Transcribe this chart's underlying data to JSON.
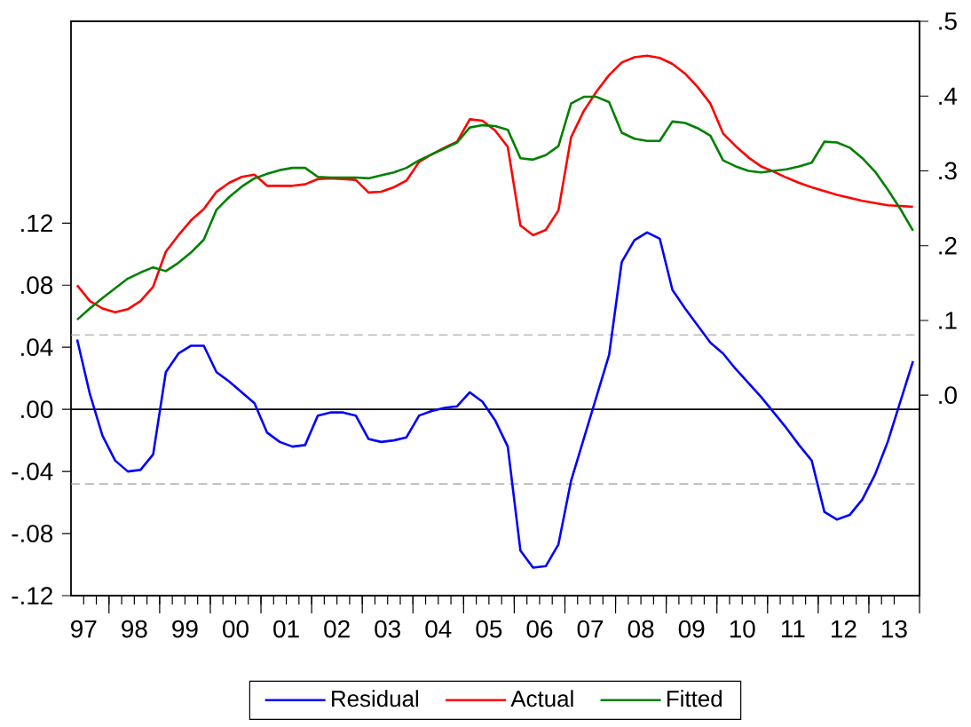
{
  "chart_data": {
    "type": "line",
    "legend": "bottom",
    "x": [
      "1997-05-15",
      "1997-08-15",
      "1997-11-15",
      "1998-02-15",
      "1998-05-15",
      "1998-08-15",
      "1998-11-15",
      "1999-02-15",
      "1999-05-15",
      "1999-08-15",
      "1999-11-15",
      "2000-02-15",
      "2000-05-15",
      "2000-08-15",
      "2000-11-15",
      "2001-02-15",
      "2001-05-15",
      "2001-08-15",
      "2001-11-15",
      "2002-02-15",
      "2002-05-15",
      "2002-08-15",
      "2002-11-15",
      "2003-02-15",
      "2003-05-15",
      "2003-08-15",
      "2003-11-15",
      "2004-02-15",
      "2004-05-15",
      "2004-08-15",
      "2004-11-15",
      "2005-02-15",
      "2005-05-15",
      "2005-08-15",
      "2005-11-15",
      "2006-02-15",
      "2006-05-15",
      "2006-08-15",
      "2006-11-15",
      "2007-02-15",
      "2007-05-15",
      "2007-08-15",
      "2007-11-15",
      "2008-02-15",
      "2008-05-15",
      "2008-08-15",
      "2008-11-15",
      "2009-02-15",
      "2009-05-15",
      "2009-08-15",
      "2009-11-15",
      "2010-02-15",
      "2010-05-15",
      "2010-08-15",
      "2010-11-15",
      "2011-02-15",
      "2011-05-15",
      "2011-08-15",
      "2011-11-15",
      "2012-02-15",
      "2012-05-15",
      "2012-08-15",
      "2012-11-15",
      "2013-02-15",
      "2013-05-15",
      "2013-08-15",
      "2013-11-15"
    ],
    "xlim": [
      "1997-04-01",
      "2014-01-01"
    ],
    "xticks": [
      {
        "value": "1997-07-01",
        "label": "97"
      },
      {
        "value": "1998-07-01",
        "label": "98"
      },
      {
        "value": "1999-07-01",
        "label": "99"
      },
      {
        "value": "2000-07-01",
        "label": "00"
      },
      {
        "value": "2001-07-01",
        "label": "01"
      },
      {
        "value": "2002-07-01",
        "label": "02"
      },
      {
        "value": "2003-07-01",
        "label": "03"
      },
      {
        "value": "2004-07-01",
        "label": "04"
      },
      {
        "value": "2005-07-01",
        "label": "05"
      },
      {
        "value": "2006-07-01",
        "label": "06"
      },
      {
        "value": "2007-07-01",
        "label": "07"
      },
      {
        "value": "2008-07-01",
        "label": "08"
      },
      {
        "value": "2009-07-01",
        "label": "09"
      },
      {
        "value": "2010-07-01",
        "label": "10"
      },
      {
        "value": "2011-07-01",
        "label": "11"
      },
      {
        "value": "2012-07-01",
        "label": "12"
      },
      {
        "value": "2013-07-01",
        "label": "13"
      },
      {
        "value": "1998-01-01",
        "label": null
      },
      {
        "value": "1999-01-01",
        "label": null
      },
      {
        "value": "2000-01-01",
        "label": null
      },
      {
        "value": "2001-01-01",
        "label": null
      },
      {
        "value": "2002-01-01",
        "label": null
      },
      {
        "value": "2003-01-01",
        "label": null
      },
      {
        "value": "2004-01-01",
        "label": null
      },
      {
        "value": "2005-01-01",
        "label": null
      },
      {
        "value": "2006-01-01",
        "label": null
      },
      {
        "value": "2007-01-01",
        "label": null
      },
      {
        "value": "2008-01-01",
        "label": null
      },
      {
        "value": "2009-01-01",
        "label": null
      },
      {
        "value": "2010-01-01",
        "label": null
      },
      {
        "value": "2011-01-01",
        "label": null
      },
      {
        "value": "2012-01-01",
        "label": null
      },
      {
        "value": "2013-01-01",
        "label": null
      },
      {
        "value": "2014-01-01",
        "label": null
      }
    ],
    "ylim": [
      -0.12,
      0.25
    ],
    "yticks": [
      {
        "value": -0.12,
        "label": "-.12"
      },
      {
        "value": -0.08,
        "label": "-.08"
      },
      {
        "value": -0.04,
        "label": "-.04"
      },
      {
        "value": 0,
        "label": ".00"
      },
      {
        "value": 0.04,
        "label": ".04"
      },
      {
        "value": 0.08,
        "label": ".08"
      },
      {
        "value": 0.12,
        "label": ".12"
      }
    ],
    "y2lim": [
      -0.268,
      0.5
    ],
    "y2ticks": [
      {
        "value": 0,
        "label": ".0"
      },
      {
        "value": 0.1,
        "label": ".1"
      },
      {
        "value": 0.2,
        "label": ".2"
      },
      {
        "value": 0.3,
        "label": ".3"
      },
      {
        "value": 0.4,
        "label": ".4"
      },
      {
        "value": 0.5,
        "label": ".5"
      }
    ],
    "ref_lines": [
      {
        "axis": "y",
        "value": 0,
        "color": "#000000",
        "line_style": "solid"
      },
      {
        "axis": "y",
        "value": 0.048,
        "color": "#999999",
        "line_style": "dashed"
      },
      {
        "axis": "y",
        "value": -0.048,
        "color": "#999999",
        "line_style": "dashed"
      }
    ],
    "series": [
      {
        "name": "Residual",
        "color": "#0000ff",
        "axis": "y",
        "values": [
          0.045,
          0.01,
          -0.017,
          -0.033,
          -0.04,
          -0.039,
          -0.029,
          0.024,
          0.036,
          0.041,
          0.041,
          0.024,
          0.018,
          0.011,
          0.004,
          -0.015,
          -0.021,
          -0.024,
          -0.023,
          -0.004,
          -0.002,
          -0.002,
          -0.004,
          -0.019,
          -0.021,
          -0.02,
          -0.018,
          -0.004,
          -0.001,
          0.001,
          0.002,
          0.011,
          0.005,
          -0.007,
          -0.024,
          -0.091,
          -0.102,
          -0.101,
          -0.087,
          -0.046,
          -0.019,
          0.008,
          0.035,
          0.095,
          0.109,
          0.114,
          0.11,
          0.077,
          0.065,
          0.054,
          0.043,
          0.036,
          0.026,
          0.017,
          0.008,
          -0.002,
          -0.012,
          -0.023,
          -0.033,
          -0.066,
          -0.071,
          -0.068,
          -0.058,
          -0.042,
          -0.021,
          0.005,
          0.031
        ]
      },
      {
        "name": "Actual",
        "color": "#ff0000",
        "axis": "y2",
        "values": [
          0.147,
          0.126,
          0.116,
          0.111,
          0.115,
          0.126,
          0.145,
          0.192,
          0.214,
          0.234,
          0.249,
          0.272,
          0.284,
          0.292,
          0.295,
          0.28,
          0.28,
          0.28,
          0.282,
          0.289,
          0.29,
          0.289,
          0.288,
          0.271,
          0.272,
          0.278,
          0.287,
          0.312,
          0.322,
          0.331,
          0.339,
          0.369,
          0.367,
          0.354,
          0.332,
          0.227,
          0.214,
          0.221,
          0.247,
          0.345,
          0.38,
          0.406,
          0.428,
          0.445,
          0.452,
          0.454,
          0.451,
          0.443,
          0.43,
          0.412,
          0.39,
          0.35,
          0.333,
          0.318,
          0.306,
          0.299,
          0.291,
          0.284,
          0.278,
          0.273,
          0.268,
          0.264,
          0.26,
          0.257,
          0.254,
          0.253,
          0.252
        ]
      },
      {
        "name": "Fitted",
        "color": "#008000",
        "axis": "y2",
        "values": [
          0.101,
          0.116,
          0.13,
          0.143,
          0.156,
          0.164,
          0.171,
          0.166,
          0.177,
          0.191,
          0.208,
          0.248,
          0.265,
          0.279,
          0.29,
          0.296,
          0.301,
          0.304,
          0.304,
          0.292,
          0.291,
          0.291,
          0.291,
          0.29,
          0.294,
          0.298,
          0.304,
          0.314,
          0.322,
          0.33,
          0.338,
          0.358,
          0.361,
          0.36,
          0.355,
          0.317,
          0.315,
          0.321,
          0.333,
          0.39,
          0.399,
          0.399,
          0.392,
          0.351,
          0.343,
          0.34,
          0.34,
          0.366,
          0.364,
          0.357,
          0.347,
          0.314,
          0.306,
          0.3,
          0.298,
          0.3,
          0.302,
          0.306,
          0.311,
          0.339,
          0.338,
          0.331,
          0.317,
          0.299,
          0.275,
          0.249,
          0.22
        ]
      }
    ]
  }
}
